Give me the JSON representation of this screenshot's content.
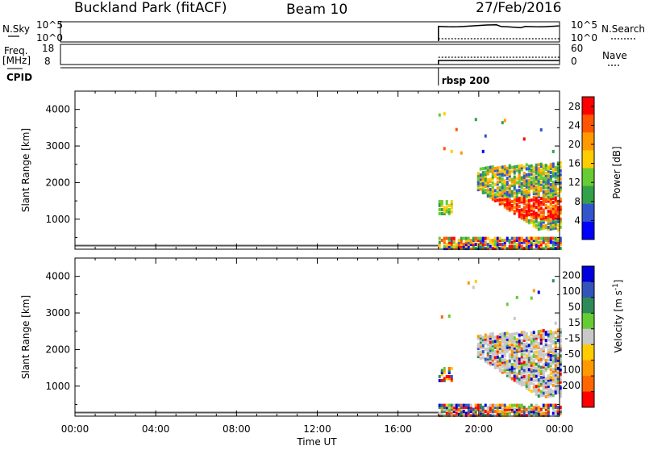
{
  "header": {
    "station": "Buckland Park (fitACF)",
    "beam": "Beam 10",
    "date": "27/Feb/2016"
  },
  "status_panels": {
    "nsky_label": "N.Sky",
    "nsky_ticks": [
      "10^5",
      "10^0"
    ],
    "nsearch_label": "N.Search",
    "nsearch_ticks": [
      "10^5",
      "10^0"
    ],
    "freq_label_1": "Freq.",
    "freq_label_2": "[MHz]",
    "freq_ticks": [
      "18",
      "8"
    ],
    "nave_label": "Nave",
    "nave_ticks": [
      "60",
      "0"
    ],
    "cpid_label": "CPID",
    "cpid_value": "rbsp 200",
    "data_start_hour": 18.0,
    "data_end_hour": 24.0
  },
  "chart_data": [
    {
      "type": "heatmap",
      "name": "power",
      "xlabel": "",
      "ylabel": "Slant Range [km]",
      "xlim": [
        0,
        24
      ],
      "ylim": [
        180,
        4500
      ],
      "yticks": [
        1000,
        2000,
        3000,
        4000
      ],
      "colorbar_label": "Power [dB]",
      "colorbar_ticks": [
        4,
        8,
        12,
        16,
        20,
        24,
        28
      ],
      "colorbar_range": [
        0,
        30
      ],
      "colors": [
        "#0000ff",
        "#3355cc",
        "#33a04a",
        "#66cc33",
        "#ffcc00",
        "#ff9900",
        "#ff5500",
        "#ff0000"
      ]
    },
    {
      "type": "heatmap",
      "name": "velocity",
      "xlabel": "Time UT",
      "ylabel": "Slant Range [km]",
      "xlim": [
        0,
        24
      ],
      "ylim": [
        180,
        4500
      ],
      "xticks": [
        "00:00",
        "04:00",
        "08:00",
        "12:00",
        "16:00",
        "20:00",
        "00:00"
      ],
      "yticks": [
        1000,
        2000,
        3000,
        4000
      ],
      "colorbar_label": "Velocity [m s-1]",
      "colorbar_ticks": [
        "200",
        "100",
        "50",
        "15",
        "-15",
        "-50",
        "-100",
        "-200"
      ],
      "colors": [
        "#0000dd",
        "#3355bb",
        "#2e8b57",
        "#66cc33",
        "#c8c8c8",
        "#ffcc00",
        "#ff9900",
        "#ff6600",
        "#ff0000"
      ]
    }
  ]
}
